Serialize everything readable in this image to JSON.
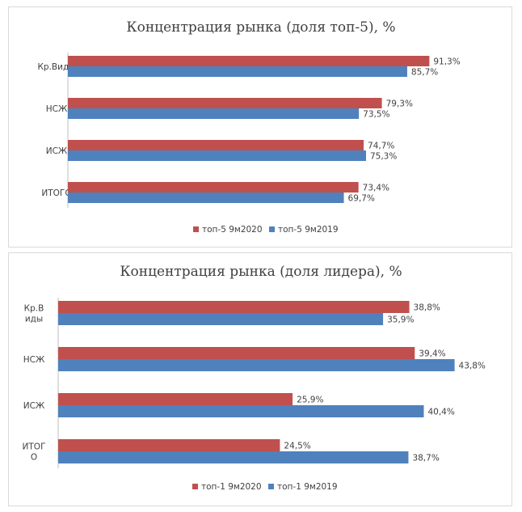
{
  "chart_data": [
    {
      "type": "bar",
      "orientation": "horizontal",
      "title": "Концентрация рынка (доля топ-5), %",
      "categories": [
        [
          "Кр.Виды"
        ],
        [
          "НСЖ"
        ],
        [
          "ИСЖ"
        ],
        [
          "ИТОГО"
        ]
      ],
      "series": [
        {
          "name": "топ-5 9м2020",
          "color": "#c0504d",
          "values": [
            91.3,
            79.3,
            74.7,
            73.4
          ],
          "labels": [
            "91,3%",
            "79,3%",
            "74,7%",
            "73,4%"
          ]
        },
        {
          "name": "топ-5 9м2019",
          "color": "#4f81bd",
          "values": [
            85.7,
            73.5,
            75.3,
            69.7
          ],
          "labels": [
            "85,7%",
            "73,5%",
            "75,3%",
            "69,7%"
          ]
        }
      ],
      "xlim": [
        0,
        100
      ],
      "legend": "bottom"
    },
    {
      "type": "bar",
      "orientation": "horizontal",
      "title": "Концентрация рынка (доля лидера), %",
      "categories": [
        [
          "Кр.В",
          "иды"
        ],
        [
          "НСЖ"
        ],
        [
          "ИСЖ"
        ],
        [
          "ИТОГ",
          "О"
        ]
      ],
      "series": [
        {
          "name": "топ-1 9м2020",
          "color": "#c0504d",
          "values": [
            38.8,
            39.4,
            25.9,
            24.5
          ],
          "labels": [
            "38,8%",
            "39,4%",
            "25,9%",
            "24,5%"
          ]
        },
        {
          "name": "топ-1 9м2019",
          "color": "#4f81bd",
          "values": [
            35.9,
            43.8,
            40.4,
            38.7
          ],
          "labels": [
            "35,9%",
            "43,8%",
            "40,4%",
            "38,7%"
          ]
        }
      ],
      "xlim": [
        0,
        50
      ],
      "legend": "bottom"
    }
  ]
}
